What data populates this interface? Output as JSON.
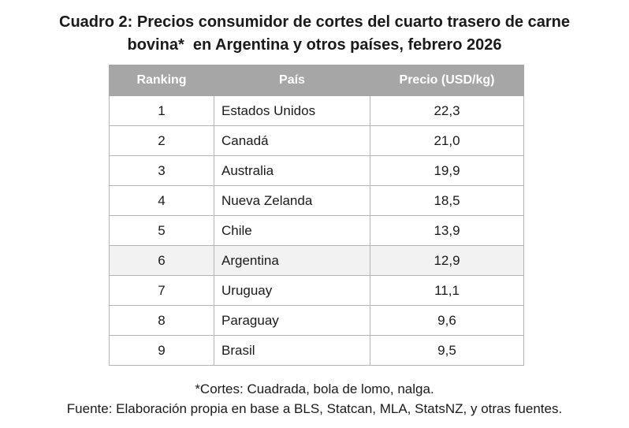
{
  "title": {
    "line1": "Cuadro 2: Precios consumidor de cortes del cuarto trasero de carne",
    "line2": "bovina*  en Argentina y otros países, febrero 2026"
  },
  "table": {
    "headers": [
      "Ranking",
      "País",
      "Precio (USD/kg)"
    ],
    "rows": [
      {
        "rank": "1",
        "country": "Estados Unidos",
        "price": "22,3"
      },
      {
        "rank": "2",
        "country": "Canadá",
        "price": "21,0"
      },
      {
        "rank": "3",
        "country": "Australia",
        "price": "19,9"
      },
      {
        "rank": "4",
        "country": "Nueva Zelanda",
        "price": "18,5"
      },
      {
        "rank": "5",
        "country": "Chile",
        "price": "13,9"
      },
      {
        "rank": "6",
        "country": "Argentina",
        "price": "12,9"
      },
      {
        "rank": "7",
        "country": "Uruguay",
        "price": "11,1"
      },
      {
        "rank": "8",
        "country": "Paraguay",
        "price": "9,6"
      },
      {
        "rank": "9",
        "country": "Brasil",
        "price": "9,5"
      }
    ],
    "highlight_country": "Argentina",
    "header_color": "#a6a6a6",
    "highlight_color": "#f2f2f2"
  },
  "notes": {
    "cuts": "*Cortes: Cuadrada, bola de lomo, nalga.",
    "source": "Fuente: Elaboración propia en base a BLS, Statcan, MLA, StatsNZ, y otras fuentes."
  }
}
